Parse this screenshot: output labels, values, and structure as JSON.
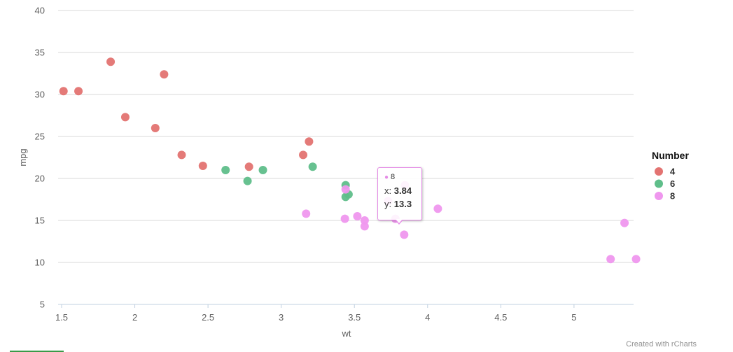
{
  "chart_data": {
    "type": "scatter",
    "title": "",
    "xlabel": "wt",
    "ylabel": "mpg",
    "xlim": [
      1.5,
      5.45
    ],
    "ylim": [
      5,
      40
    ],
    "x_ticks": [
      1.5,
      2,
      2.5,
      3,
      3.5,
      4,
      4.5,
      5
    ],
    "x_tick_labels": [
      "1.5",
      "2",
      "2.5",
      "3",
      "3.5",
      "4",
      "4.5",
      "5"
    ],
    "y_ticks": [
      5,
      10,
      15,
      20,
      25,
      30,
      35,
      40
    ],
    "y_tick_labels": [
      "5",
      "10",
      "15",
      "20",
      "25",
      "30",
      "35",
      "40"
    ],
    "grid": "horizontal",
    "legend": {
      "title": "Number",
      "placement": "right"
    },
    "series": [
      {
        "name": "4",
        "color": "#e37371",
        "points": [
          {
            "x": 1.513,
            "y": 30.4
          },
          {
            "x": 1.615,
            "y": 30.4
          },
          {
            "x": 1.835,
            "y": 33.9
          },
          {
            "x": 1.935,
            "y": 27.3
          },
          {
            "x": 2.2,
            "y": 32.4
          },
          {
            "x": 2.14,
            "y": 26.0
          },
          {
            "x": 2.32,
            "y": 22.8
          },
          {
            "x": 2.465,
            "y": 21.5
          },
          {
            "x": 2.78,
            "y": 21.4
          },
          {
            "x": 3.15,
            "y": 22.8
          },
          {
            "x": 3.19,
            "y": 24.4
          }
        ]
      },
      {
        "name": "6",
        "color": "#5fbe8a",
        "points": [
          {
            "x": 2.62,
            "y": 21.0
          },
          {
            "x": 2.875,
            "y": 21.0
          },
          {
            "x": 2.77,
            "y": 19.7
          },
          {
            "x": 3.215,
            "y": 21.4
          },
          {
            "x": 3.44,
            "y": 19.2
          },
          {
            "x": 3.44,
            "y": 17.8
          },
          {
            "x": 3.46,
            "y": 18.1
          }
        ]
      },
      {
        "name": "8",
        "color": "#ef97ee",
        "points": [
          {
            "x": 3.17,
            "y": 15.8
          },
          {
            "x": 3.435,
            "y": 15.2
          },
          {
            "x": 3.44,
            "y": 18.7
          },
          {
            "x": 3.52,
            "y": 15.5
          },
          {
            "x": 3.57,
            "y": 15.0
          },
          {
            "x": 3.57,
            "y": 14.3
          },
          {
            "x": 3.73,
            "y": 17.3
          },
          {
            "x": 3.78,
            "y": 15.2
          },
          {
            "x": 3.84,
            "y": 13.3
          },
          {
            "x": 3.845,
            "y": 19.2
          },
          {
            "x": 4.07,
            "y": 16.4
          },
          {
            "x": 5.25,
            "y": 10.4
          },
          {
            "x": 5.345,
            "y": 14.7
          },
          {
            "x": 5.424,
            "y": 10.4
          }
        ]
      }
    ],
    "tooltip": {
      "series": "8",
      "x_label": "x:",
      "x_value": "3.84",
      "y_label": "y:",
      "y_value": "13.3"
    }
  },
  "credits": "Created with rCharts"
}
